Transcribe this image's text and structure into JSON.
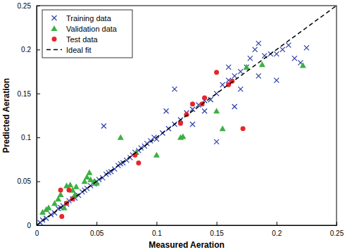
{
  "chart_data": {
    "type": "scatter",
    "x_label": "Measured Aeration",
    "y_label": "Predicted Aeration",
    "xlim": [
      0,
      0.25
    ],
    "ylim": [
      0,
      0.25
    ],
    "xticks": [
      0,
      0.05,
      0.1,
      0.15,
      0.2,
      0.25
    ],
    "yticks": [
      0,
      0.05,
      0.1,
      0.15,
      0.2,
      0.25
    ],
    "grid": false,
    "legend": "top-left",
    "series": [
      {
        "name": "Training data",
        "type": "scatter",
        "marker": "x",
        "color": "#2b3fa8",
        "x": [
          0.003,
          0.005,
          0.008,
          0.012,
          0.015,
          0.018,
          0.02,
          0.022,
          0.025,
          0.027,
          0.03,
          0.032,
          0.035,
          0.038,
          0.04,
          0.042,
          0.045,
          0.048,
          0.05,
          0.052,
          0.055,
          0.058,
          0.06,
          0.062,
          0.065,
          0.068,
          0.07,
          0.072,
          0.075,
          0.078,
          0.08,
          0.082,
          0.085,
          0.087,
          0.09,
          0.092,
          0.095,
          0.098,
          0.1,
          0.105,
          0.11,
          0.115,
          0.056,
          0.108,
          0.115,
          0.12,
          0.125,
          0.13,
          0.135,
          0.14,
          0.145,
          0.15,
          0.155,
          0.16,
          0.165,
          0.17,
          0.175,
          0.178,
          0.182,
          0.185,
          0.19,
          0.195,
          0.2,
          0.205,
          0.21,
          0.215,
          0.22,
          0.225,
          0.16,
          0.13,
          0.165,
          0.15,
          0.2,
          0.14,
          0.17,
          0.185
        ],
        "values": [
          0.003,
          0.006,
          0.008,
          0.012,
          0.014,
          0.019,
          0.02,
          0.022,
          0.024,
          0.028,
          0.03,
          0.031,
          0.034,
          0.038,
          0.04,
          0.042,
          0.045,
          0.047,
          0.05,
          0.052,
          0.054,
          0.058,
          0.06,
          0.061,
          0.064,
          0.068,
          0.07,
          0.071,
          0.074,
          0.077,
          0.08,
          0.083,
          0.085,
          0.088,
          0.09,
          0.093,
          0.096,
          0.1,
          0.098,
          0.105,
          0.11,
          0.115,
          0.113,
          0.13,
          0.155,
          0.12,
          0.128,
          0.132,
          0.137,
          0.142,
          0.143,
          0.15,
          0.16,
          0.165,
          0.17,
          0.175,
          0.18,
          0.19,
          0.2,
          0.207,
          0.193,
          0.195,
          0.195,
          0.2,
          0.205,
          0.19,
          0.185,
          0.202,
          0.18,
          0.115,
          0.135,
          0.095,
          0.165,
          0.13,
          0.155,
          0.17
        ]
      },
      {
        "name": "Validation data",
        "type": "scatter",
        "marker": "triangle",
        "color": "#3cb043",
        "x": [
          0.005,
          0.008,
          0.01,
          0.015,
          0.018,
          0.02,
          0.025,
          0.028,
          0.03,
          0.033,
          0.04,
          0.042,
          0.044,
          0.045,
          0.048,
          0.05,
          0.07,
          0.083,
          0.1,
          0.12,
          0.122,
          0.15,
          0.155,
          0.175,
          0.188,
          0.222,
          0.023,
          0.032
        ],
        "values": [
          0.015,
          0.018,
          0.02,
          0.025,
          0.03,
          0.035,
          0.045,
          0.046,
          0.04,
          0.044,
          0.05,
          0.055,
          0.06,
          0.052,
          0.05,
          0.048,
          0.1,
          0.083,
          0.08,
          0.1,
          0.101,
          0.13,
          0.11,
          0.18,
          0.183,
          0.182,
          0.02,
          0.035
        ]
      },
      {
        "name": "Test data",
        "type": "scatter",
        "marker": "circle",
        "color": "#e8262a",
        "x": [
          0.02,
          0.021,
          0.027,
          0.03,
          0.082,
          0.085,
          0.12,
          0.125,
          0.13,
          0.138,
          0.14,
          0.15,
          0.16,
          0.163,
          0.172,
          0.025
        ],
        "values": [
          0.04,
          0.01,
          0.04,
          0.03,
          0.08,
          0.071,
          0.116,
          0.126,
          0.138,
          0.138,
          0.145,
          0.174,
          0.16,
          0.164,
          0.11,
          0.025
        ]
      },
      {
        "name": "Ideal fit",
        "type": "line",
        "line_style": "dashed",
        "color": "#000000",
        "x": [
          0,
          0.25
        ],
        "values": [
          0,
          0.25
        ]
      }
    ]
  }
}
